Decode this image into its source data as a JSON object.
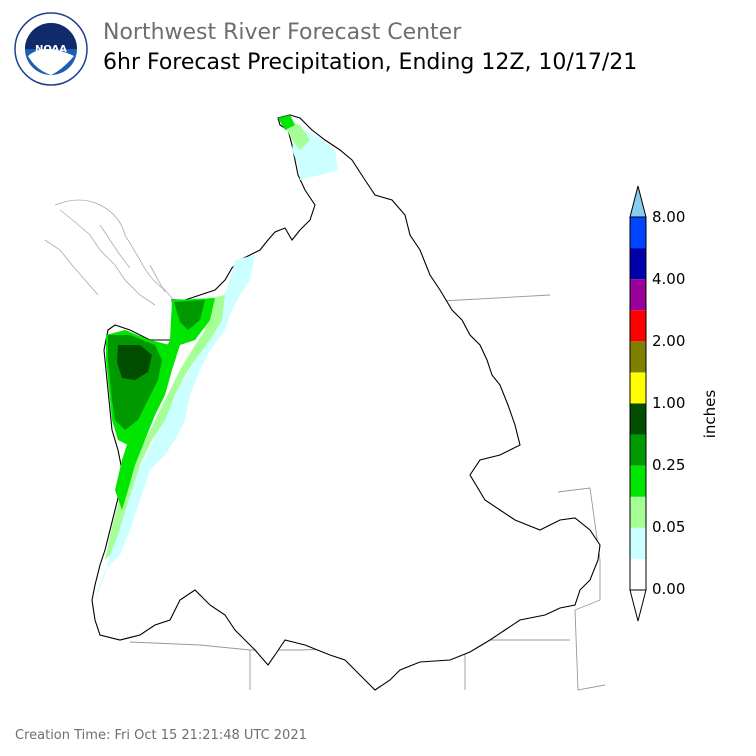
{
  "header": {
    "title": "Northwest River Forecast Center",
    "subtitle": "6hr Forecast Precipitation, Ending 12Z, 10/17/21",
    "logo_text": "NOAA",
    "logo_ring_text": "NATIONAL OCEANIC AND ATMOSPHERIC ADMINISTRATION · U.S. DEPARTMENT OF COMMERCE"
  },
  "footer": {
    "creation_time": "Creation Time: Fri Oct 15 21:21:48 UTC 2021"
  },
  "colorbar": {
    "units": "inches",
    "tick_labels": [
      "0.00",
      "0.05",
      "0.25",
      "1.00",
      "2.00",
      "4.00",
      "8.00"
    ],
    "bands": [
      {
        "color": "#ffffff"
      },
      {
        "color": "#ccffff"
      },
      {
        "color": "#a6ff96"
      },
      {
        "color": "#00e600"
      },
      {
        "color": "#009900"
      },
      {
        "color": "#004d00"
      },
      {
        "color": "#ffff00"
      },
      {
        "color": "#808000"
      },
      {
        "color": "#ff0000"
      },
      {
        "color": "#990099"
      },
      {
        "color": "#0000aa"
      },
      {
        "color": "#0044ff"
      }
    ],
    "over_color": "#88ccee",
    "under_color": "#ffffff"
  },
  "colors": {
    "basin_outline": "#000000",
    "state_lines": "#999999",
    "coast_lines": "#aaaaaa"
  }
}
